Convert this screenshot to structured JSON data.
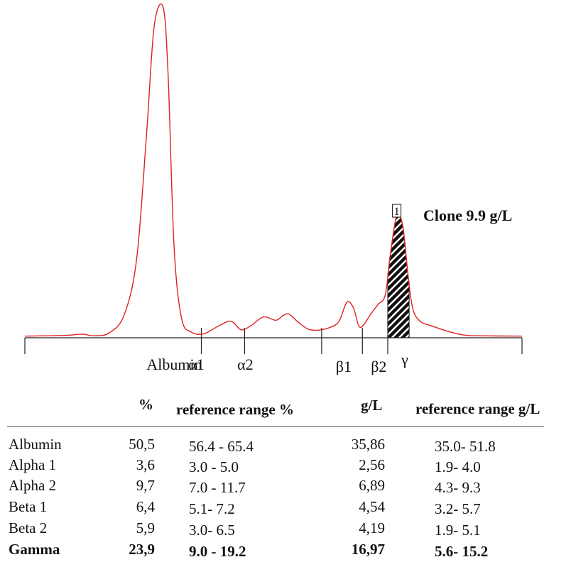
{
  "chart_data": {
    "type": "line",
    "title": "",
    "xlabel": "",
    "ylabel": "",
    "x_range": [
      0,
      100
    ],
    "y_range": [
      0,
      1
    ],
    "grid": false,
    "line_color": "#e02020",
    "clone_fill": "hatched black",
    "points": [
      [
        0,
        0.005
      ],
      [
        8,
        0.007
      ],
      [
        11.5,
        0.011
      ],
      [
        14,
        0.006
      ],
      [
        17,
        0.015
      ],
      [
        20,
        0.07
      ],
      [
        22.5,
        0.24
      ],
      [
        24.5,
        0.62
      ],
      [
        26,
        0.94
      ],
      [
        27.8,
        1.0
      ],
      [
        28.8,
        0.8
      ],
      [
        30,
        0.28
      ],
      [
        31.5,
        0.06
      ],
      [
        33.5,
        0.017
      ],
      [
        36,
        0.012
      ],
      [
        39,
        0.036
      ],
      [
        41.5,
        0.05
      ],
      [
        43.5,
        0.024
      ],
      [
        45.5,
        0.037
      ],
      [
        48,
        0.063
      ],
      [
        50.5,
        0.053
      ],
      [
        52,
        0.068
      ],
      [
        53.2,
        0.071
      ],
      [
        55,
        0.047
      ],
      [
        57,
        0.026
      ],
      [
        59,
        0.023
      ],
      [
        61.5,
        0.032
      ],
      [
        63.2,
        0.05
      ],
      [
        64.8,
        0.108
      ],
      [
        66.1,
        0.09
      ],
      [
        67.2,
        0.035
      ],
      [
        68.2,
        0.04
      ],
      [
        69.5,
        0.07
      ],
      [
        71,
        0.1
      ],
      [
        72.5,
        0.13
      ],
      [
        73.5,
        0.25
      ],
      [
        74.8,
        0.37
      ],
      [
        76,
        0.34
      ],
      [
        77,
        0.2
      ],
      [
        78,
        0.09
      ],
      [
        79.5,
        0.05
      ],
      [
        82,
        0.035
      ],
      [
        85,
        0.02
      ],
      [
        88,
        0.009
      ],
      [
        91,
        0.006
      ],
      [
        100,
        0.005
      ]
    ],
    "fraction_labels": [
      "Albumin",
      "α1",
      "α2",
      "β1",
      "β2",
      "γ"
    ],
    "fraction_boundaries": [
      0,
      35.5,
      44.2,
      59.7,
      67.9,
      73.0,
      100
    ],
    "clone": {
      "marker": "1",
      "label": "Clone 9.9 g/L",
      "x_start": 73.0,
      "x_peak": 74.8,
      "x_end": 77.3
    }
  },
  "table": {
    "headers": {
      "pct": "%",
      "ref_pct": "reference range %",
      "gl": "g/L",
      "ref_gl": "reference range g/L"
    },
    "rows": [
      {
        "name": "Albumin",
        "pct": "50,5",
        "ref_pct": "56.4 - 65.4",
        "gl": "35,86",
        "ref_gl": "35.0- 51.8",
        "bold": false
      },
      {
        "name": "Alpha 1",
        "pct": "3,6",
        "ref_pct": "3.0 - 5.0",
        "gl": "2,56",
        "ref_gl": "1.9- 4.0",
        "bold": false
      },
      {
        "name": "Alpha 2",
        "pct": "9,7",
        "ref_pct": "7.0 - 11.7",
        "gl": "6,89",
        "ref_gl": "4.3- 9.3",
        "bold": false
      },
      {
        "name": "Beta 1",
        "pct": "6,4",
        "ref_pct": "5.1- 7.2",
        "gl": "4,54",
        "ref_gl": "3.2- 5.7",
        "bold": false
      },
      {
        "name": "Beta 2",
        "pct": "5,9",
        "ref_pct": "3.0- 6.5",
        "gl": "4,19",
        "ref_gl": "1.9- 5.1",
        "bold": false
      },
      {
        "name": "Gamma",
        "pct": "23,9",
        "ref_pct": "9.0 - 19.2",
        "gl": "16,97",
        "ref_gl": "5.6- 15.2",
        "bold": true
      }
    ]
  }
}
